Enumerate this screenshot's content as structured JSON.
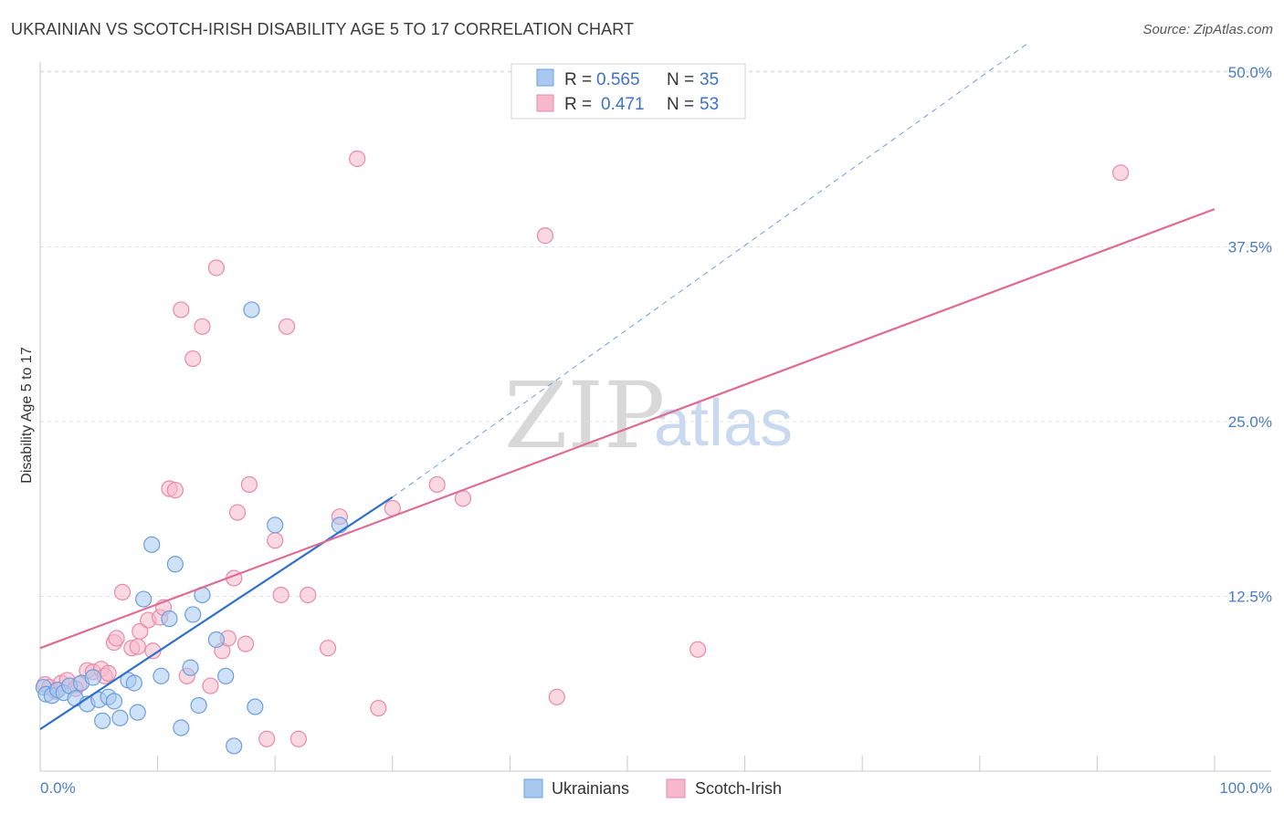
{
  "header": {
    "title": "UKRAINIAN VS SCOTCH-IRISH DISABILITY AGE 5 TO 17 CORRELATION CHART",
    "source": "Source: ZipAtlas.com"
  },
  "watermark": {
    "zip": "ZIP",
    "atlas": "atlas"
  },
  "legend": {
    "r_label": "R =",
    "n_label": "N =",
    "series": [
      {
        "r": "0.565",
        "n": "35"
      },
      {
        "r": "0.471",
        "n": "53"
      }
    ]
  },
  "colors": {
    "ukrainians_fill": "#a8c8f0",
    "ukrainians_stroke": "#6b9fdc",
    "ukrainians_line": "#2e6fcf",
    "scotch_fill": "#f6b8cb",
    "scotch_stroke": "#e98aa7",
    "scotch_line": "#e06a93",
    "tick_text": "#4a7cc9"
  },
  "chart_data": {
    "type": "scatter",
    "title": "UKRAINIAN VS SCOTCH-IRISH DISABILITY AGE 5 TO 17 CORRELATION CHART",
    "xlabel": "",
    "ylabel": "Disability Age 5 to 17",
    "xlim": [
      0,
      100
    ],
    "ylim": [
      0,
      52
    ],
    "x_tick_labels": [
      "0.0%",
      "100.0%"
    ],
    "y_ticks": [
      12.5,
      25.0,
      37.5,
      50.0
    ],
    "y_tick_labels": [
      "12.5%",
      "25.0%",
      "37.5%",
      "50.0%"
    ],
    "grid": true,
    "series": [
      {
        "name": "Ukrainians",
        "r": 0.565,
        "n": 35,
        "points": [
          [
            0.3,
            6.0
          ],
          [
            0.5,
            5.5
          ],
          [
            1.0,
            5.4
          ],
          [
            1.5,
            5.8
          ],
          [
            2.0,
            5.6
          ],
          [
            2.5,
            6.1
          ],
          [
            3.0,
            5.2
          ],
          [
            3.5,
            6.3
          ],
          [
            4.0,
            4.8
          ],
          [
            4.5,
            6.7
          ],
          [
            5.0,
            5.1
          ],
          [
            5.3,
            3.6
          ],
          [
            5.8,
            5.3
          ],
          [
            6.3,
            5.0
          ],
          [
            6.8,
            3.8
          ],
          [
            7.5,
            6.5
          ],
          [
            8.0,
            6.3
          ],
          [
            8.3,
            4.2
          ],
          [
            8.8,
            12.3
          ],
          [
            9.5,
            16.2
          ],
          [
            10.3,
            6.8
          ],
          [
            11.0,
            10.9
          ],
          [
            11.5,
            14.8
          ],
          [
            12.0,
            3.1
          ],
          [
            12.8,
            7.4
          ],
          [
            13.0,
            11.2
          ],
          [
            13.8,
            12.6
          ],
          [
            15.0,
            9.4
          ],
          [
            15.8,
            6.8
          ],
          [
            16.5,
            1.8
          ],
          [
            18.0,
            33.0
          ],
          [
            18.3,
            4.6
          ],
          [
            20.0,
            17.6
          ],
          [
            25.5,
            17.6
          ],
          [
            13.5,
            4.7
          ]
        ],
        "trend": {
          "x": [
            0,
            30
          ],
          "y": [
            3.0,
            19.6
          ],
          "dashed_extension": {
            "x": [
              30,
              84
            ],
            "y": [
              19.6,
              52
            ]
          }
        }
      },
      {
        "name": "Scotch-Irish",
        "r": 0.471,
        "n": 53,
        "points": [
          [
            0.4,
            6.2
          ],
          [
            0.8,
            6.0
          ],
          [
            1.3,
            5.7
          ],
          [
            1.8,
            6.3
          ],
          [
            2.3,
            6.5
          ],
          [
            3.3,
            6.2
          ],
          [
            4.0,
            7.2
          ],
          [
            4.5,
            7.1
          ],
          [
            5.2,
            7.3
          ],
          [
            5.5,
            6.8
          ],
          [
            5.8,
            7.0
          ],
          [
            6.3,
            9.2
          ],
          [
            6.5,
            9.5
          ],
          [
            7.0,
            12.8
          ],
          [
            7.8,
            8.8
          ],
          [
            8.3,
            8.9
          ],
          [
            8.5,
            10.0
          ],
          [
            9.2,
            10.8
          ],
          [
            9.6,
            8.6
          ],
          [
            10.2,
            11.0
          ],
          [
            10.5,
            11.7
          ],
          [
            11.0,
            20.2
          ],
          [
            11.5,
            20.1
          ],
          [
            12.0,
            33.0
          ],
          [
            12.5,
            6.8
          ],
          [
            13.0,
            29.5
          ],
          [
            13.8,
            31.8
          ],
          [
            14.5,
            6.1
          ],
          [
            15.0,
            36.0
          ],
          [
            15.5,
            8.6
          ],
          [
            16.0,
            9.5
          ],
          [
            16.5,
            13.8
          ],
          [
            16.8,
            18.5
          ],
          [
            17.5,
            9.1
          ],
          [
            17.8,
            20.5
          ],
          [
            19.3,
            2.3
          ],
          [
            20.0,
            16.5
          ],
          [
            20.5,
            12.6
          ],
          [
            21.0,
            31.8
          ],
          [
            22.0,
            2.3
          ],
          [
            22.8,
            12.6
          ],
          [
            24.5,
            8.8
          ],
          [
            25.5,
            18.2
          ],
          [
            27.0,
            43.8
          ],
          [
            28.8,
            4.5
          ],
          [
            30.0,
            18.8
          ],
          [
            33.8,
            20.5
          ],
          [
            36.0,
            19.5
          ],
          [
            43.0,
            38.3
          ],
          [
            44.0,
            5.3
          ],
          [
            56.0,
            8.7
          ],
          [
            92.0,
            42.8
          ],
          [
            3.0,
            5.9
          ]
        ],
        "trend": {
          "x": [
            0,
            100
          ],
          "y": [
            8.8,
            40.2
          ]
        }
      }
    ]
  },
  "bottom_legend": [
    "Ukrainians",
    "Scotch-Irish"
  ]
}
